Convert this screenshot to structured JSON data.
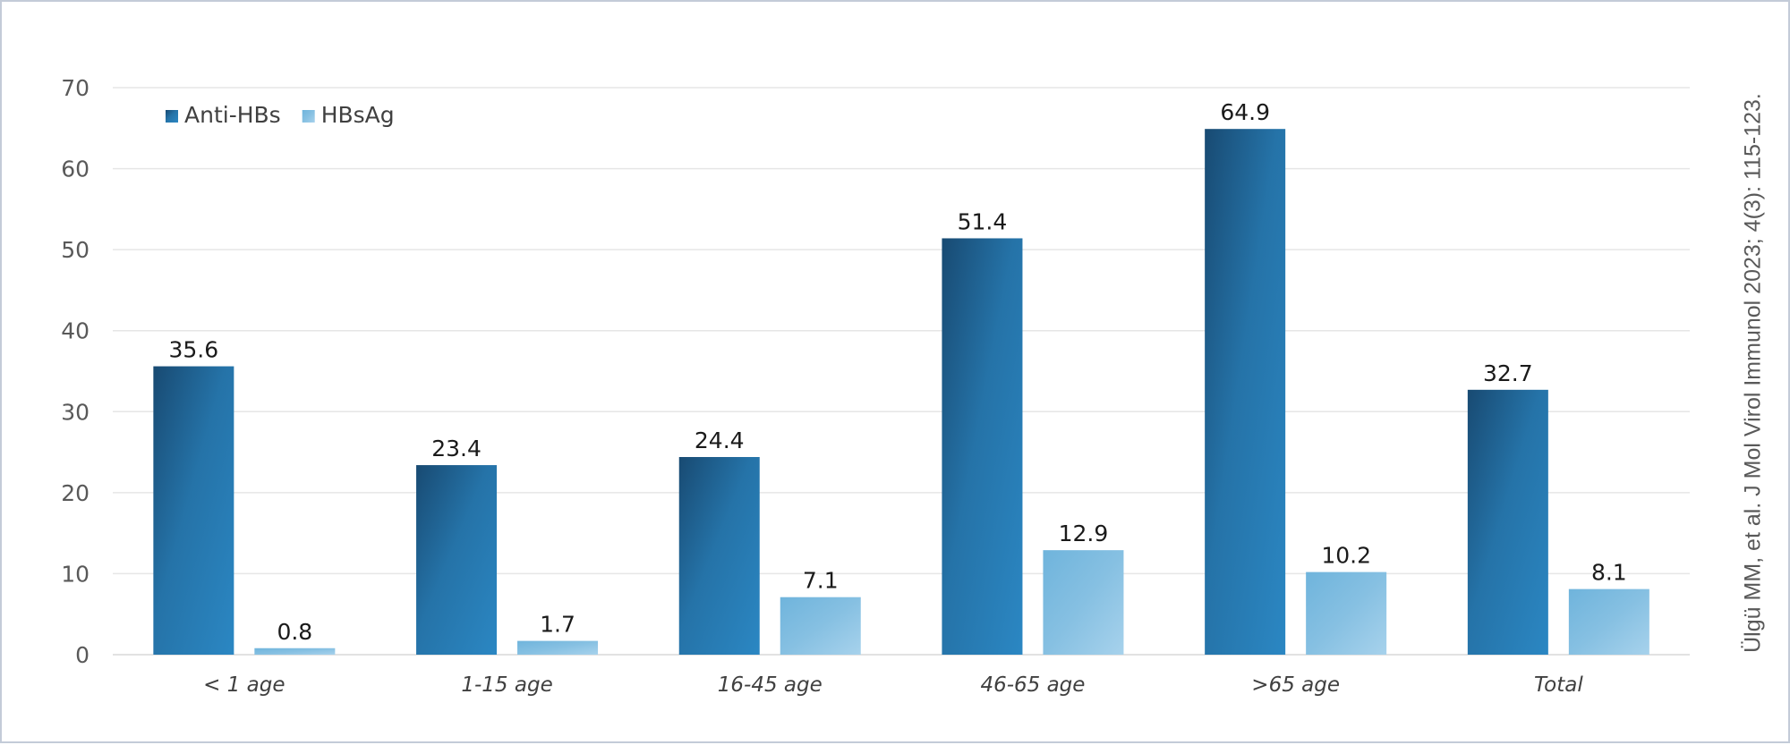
{
  "chart_data": {
    "type": "bar",
    "categories": [
      "< 1 age",
      "1-15 age",
      "16-45 age",
      "46-65 age",
      ">65 age",
      "Total"
    ],
    "series": [
      {
        "name": "Anti-HBs",
        "values": [
          35.6,
          23.4,
          24.4,
          51.4,
          64.9,
          32.7
        ],
        "color": "#1f6fa6"
      },
      {
        "name": "HBsAg",
        "values": [
          0.8,
          1.7,
          7.1,
          12.9,
          10.2,
          8.1
        ],
        "color": "#86c0e2"
      }
    ],
    "ylim": [
      0,
      70
    ],
    "yticks": [
      0,
      10,
      20,
      30,
      40,
      50,
      60,
      70
    ],
    "grid": true,
    "legend": "top-left",
    "data_labels": true
  },
  "citation": "Ülgü MM, et al. J Mol Virol Immunol 2023; 4(3): 115-123."
}
